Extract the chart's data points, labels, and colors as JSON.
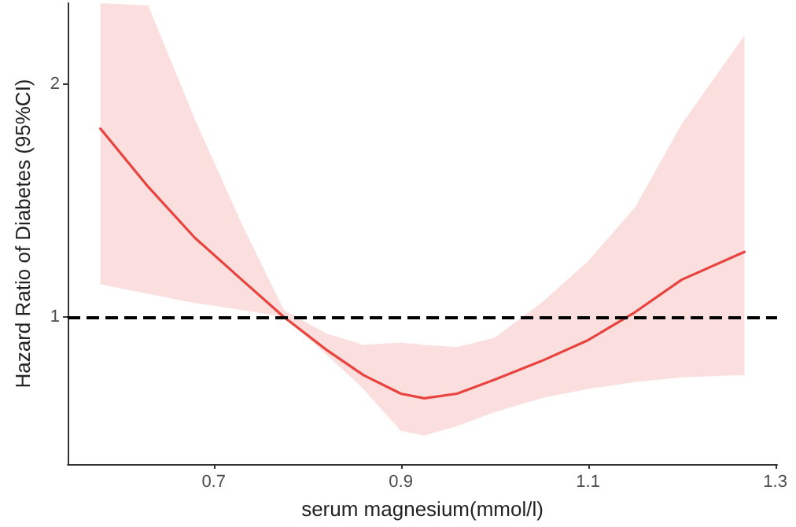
{
  "chart_data": {
    "type": "line",
    "xlabel": "serum magnesium(mmol/l)",
    "ylabel": "Hazard Ratio of Diabetes (95%CI)",
    "x": [
      0.579,
      0.63,
      0.68,
      0.73,
      0.775,
      0.82,
      0.86,
      0.9,
      0.925,
      0.96,
      1.0,
      1.05,
      1.1,
      1.15,
      1.2,
      1.267
    ],
    "series": [
      {
        "color": "#e8433e",
        "values": [
          1.81,
          1.56,
          1.34,
          1.16,
          1.0,
          0.86,
          0.75,
          0.67,
          0.65,
          0.67,
          0.73,
          0.81,
          0.9,
          1.02,
          1.16,
          1.28
        ],
        "lower": [
          1.14,
          1.1,
          1.06,
          1.03,
          1.0,
          0.84,
          0.69,
          0.51,
          0.49,
          0.53,
          0.59,
          0.65,
          0.69,
          0.72,
          0.74,
          0.75
        ],
        "upper": [
          2.35,
          2.34,
          1.85,
          1.4,
          1.03,
          0.93,
          0.88,
          0.89,
          0.88,
          0.87,
          0.91,
          1.06,
          1.24,
          1.47,
          1.83,
          2.21
        ]
      }
    ],
    "xlim": [
      0.544,
      1.302
    ],
    "ylim": [
      0.367,
      2.35
    ],
    "xticks": [
      0.7,
      0.9,
      1.1,
      1.3
    ],
    "yticks": [
      1,
      2
    ],
    "ref_lines": [
      {
        "axis": "y",
        "value": 1,
        "color": "#000000",
        "line_style": "dashed"
      }
    ],
    "grid": false,
    "marker": "none",
    "line_style": "solid"
  }
}
